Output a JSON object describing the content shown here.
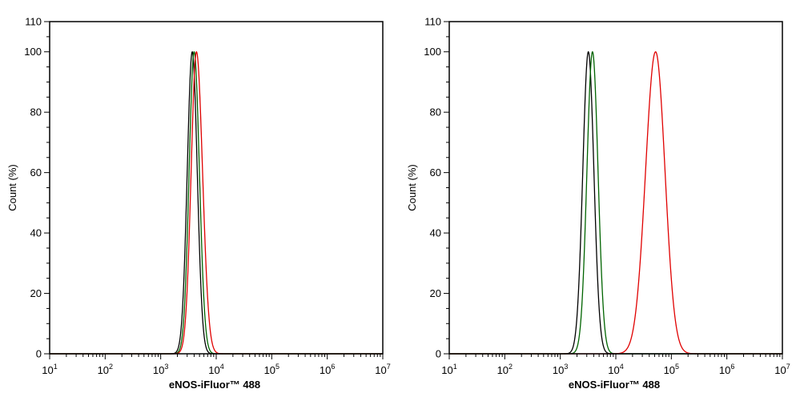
{
  "chart_data": [
    {
      "type": "line",
      "title": "",
      "xlabel": "eNOS-iFluor™ 488",
      "ylabel": "Count  (%)",
      "x_scale": "log",
      "xlim": [
        10,
        10000000
      ],
      "ylim": [
        0,
        110
      ],
      "x_ticks": [
        {
          "base": "10",
          "exp": "1"
        },
        {
          "base": "10",
          "exp": "2"
        },
        {
          "base": "10",
          "exp": "3"
        },
        {
          "base": "10",
          "exp": "4"
        },
        {
          "base": "10",
          "exp": "5"
        },
        {
          "base": "10",
          "exp": "6"
        },
        {
          "base": "10",
          "exp": "7"
        }
      ],
      "y_ticks": [
        0,
        20,
        40,
        60,
        80,
        100,
        110
      ],
      "grid": false,
      "legend": "none",
      "series": [
        {
          "color": "#000000",
          "peak_x": 3700,
          "peak_y": 100,
          "log_sigma_left": 0.09,
          "log_sigma_right": 0.09
        },
        {
          "color": "#006400",
          "peak_x": 4000,
          "peak_y": 100,
          "log_sigma_left": 0.09,
          "log_sigma_right": 0.095
        },
        {
          "color": "#e00000",
          "peak_x": 4400,
          "peak_y": 100,
          "log_sigma_left": 0.095,
          "log_sigma_right": 0.11
        }
      ]
    },
    {
      "type": "line",
      "title": "",
      "xlabel": "eNOS-iFluor™ 488",
      "ylabel": "Count  (%)",
      "x_scale": "log",
      "xlim": [
        10,
        10000000
      ],
      "ylim": [
        0,
        110
      ],
      "x_ticks": [
        {
          "base": "10",
          "exp": "1"
        },
        {
          "base": "10",
          "exp": "2"
        },
        {
          "base": "10",
          "exp": "3"
        },
        {
          "base": "10",
          "exp": "4"
        },
        {
          "base": "10",
          "exp": "5"
        },
        {
          "base": "10",
          "exp": "6"
        },
        {
          "base": "10",
          "exp": "7"
        }
      ],
      "y_ticks": [
        0,
        20,
        40,
        60,
        80,
        100,
        110
      ],
      "grid": false,
      "legend": "none",
      "series": [
        {
          "color": "#000000",
          "peak_x": 3200,
          "peak_y": 100,
          "log_sigma_left": 0.1,
          "log_sigma_right": 0.1
        },
        {
          "color": "#006400",
          "peak_x": 3800,
          "peak_y": 100,
          "log_sigma_left": 0.1,
          "log_sigma_right": 0.1
        },
        {
          "color": "#e00000",
          "peak_x": 52000,
          "peak_y": 100,
          "log_sigma_left": 0.18,
          "log_sigma_right": 0.17
        }
      ]
    }
  ]
}
